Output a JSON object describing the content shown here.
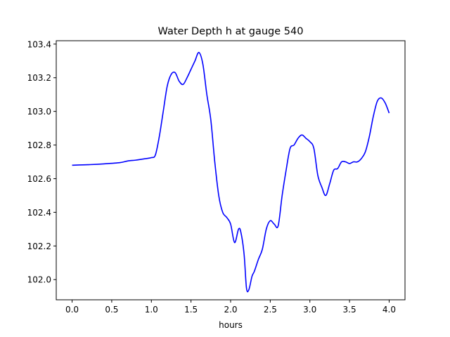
{
  "chart_data": {
    "type": "line",
    "title": "Water Depth h at gauge 540",
    "xlabel": "hours",
    "ylabel": "",
    "xlim": [
      -0.2,
      4.2
    ],
    "ylim": [
      101.88,
      103.42
    ],
    "xticks": [
      0.0,
      0.5,
      1.0,
      1.5,
      2.0,
      2.5,
      3.0,
      3.5,
      4.0
    ],
    "xtick_labels": [
      "0.0",
      "0.5",
      "1.0",
      "1.5",
      "2.0",
      "2.5",
      "3.0",
      "3.5",
      "4.0"
    ],
    "yticks": [
      102.0,
      102.2,
      102.4,
      102.6,
      102.8,
      103.0,
      103.2,
      103.4
    ],
    "ytick_labels": [
      "102.0",
      "102.2",
      "102.4",
      "102.6",
      "102.8",
      "103.0",
      "103.2",
      "103.4"
    ],
    "grid": false,
    "legend": "none",
    "series": [
      {
        "color": "#0000ff",
        "x": [
          0.0,
          0.2,
          0.4,
          0.6,
          0.7,
          0.8,
          0.9,
          1.0,
          1.05,
          1.1,
          1.15,
          1.2,
          1.25,
          1.3,
          1.35,
          1.4,
          1.45,
          1.5,
          1.55,
          1.6,
          1.65,
          1.7,
          1.75,
          1.8,
          1.85,
          1.9,
          1.95,
          2.0,
          2.05,
          2.1,
          2.13,
          2.17,
          2.2,
          2.23,
          2.27,
          2.3,
          2.35,
          2.4,
          2.45,
          2.5,
          2.55,
          2.6,
          2.65,
          2.7,
          2.75,
          2.8,
          2.85,
          2.9,
          2.95,
          3.0,
          3.05,
          3.1,
          3.15,
          3.2,
          3.25,
          3.3,
          3.35,
          3.4,
          3.45,
          3.5,
          3.55,
          3.6,
          3.65,
          3.7,
          3.75,
          3.8,
          3.85,
          3.9,
          3.95,
          4.0
        ],
        "y": [
          102.68,
          102.683,
          102.688,
          102.695,
          102.705,
          102.71,
          102.717,
          102.725,
          102.74,
          102.85,
          103.0,
          103.15,
          103.22,
          103.23,
          103.18,
          103.16,
          103.2,
          103.25,
          103.3,
          103.35,
          103.28,
          103.1,
          102.95,
          102.7,
          102.5,
          102.4,
          102.37,
          102.33,
          102.22,
          102.3,
          102.28,
          102.15,
          101.95,
          101.94,
          102.02,
          102.05,
          102.12,
          102.18,
          102.3,
          102.35,
          102.33,
          102.32,
          102.5,
          102.65,
          102.78,
          102.8,
          102.84,
          102.86,
          102.84,
          102.82,
          102.78,
          102.62,
          102.55,
          102.5,
          102.57,
          102.65,
          102.66,
          102.7,
          102.7,
          102.69,
          102.7,
          102.7,
          102.72,
          102.76,
          102.85,
          102.97,
          103.06,
          103.08,
          103.05,
          102.99
        ]
      }
    ]
  }
}
